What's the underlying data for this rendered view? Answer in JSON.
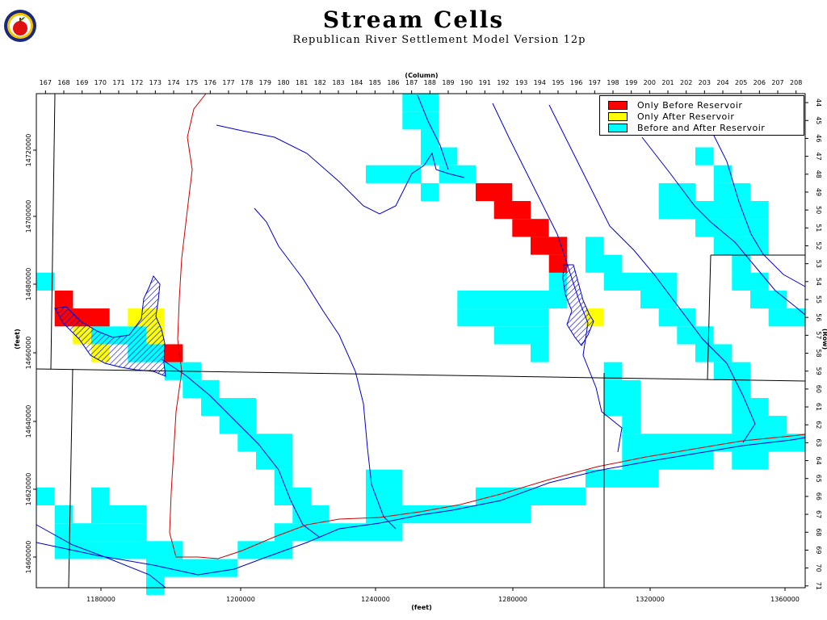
{
  "title": "Stream Cells",
  "subtitle": "Republican River Settlement Model Version 12p",
  "logo": {
    "icon": "apple-seal-logo"
  },
  "axes": {
    "top_label": "(Column)",
    "bottom_label": "(feet)",
    "left_label": "(feet)",
    "right_label": "(Row)",
    "columns": [
      "167",
      "168",
      "169",
      "170",
      "171",
      "172",
      "173",
      "174",
      "175",
      "176",
      "177",
      "178",
      "179",
      "180",
      "181",
      "182",
      "183",
      "184",
      "185",
      "186",
      "187",
      "188",
      "189",
      "190",
      "191",
      "192",
      "193",
      "194",
      "195",
      "196",
      "197",
      "198",
      "199",
      "200",
      "201",
      "202",
      "203",
      "204",
      "205",
      "206",
      "207",
      "208"
    ],
    "rows": [
      "44",
      "45",
      "46",
      "47",
      "48",
      "49",
      "50",
      "51",
      "52",
      "53",
      "54",
      "55",
      "56",
      "57",
      "58",
      "59",
      "60",
      "61",
      "62",
      "63",
      "64",
      "65",
      "66",
      "67",
      "68",
      "69",
      "70",
      "71"
    ],
    "x_ticks": [
      "1180000",
      "1200000",
      "1240000",
      "1280000",
      "1320000",
      "1360000"
    ],
    "y_ticks": [
      "14720000",
      "14700000",
      "14680000",
      "14660000",
      "14640000",
      "14620000",
      "14600000"
    ]
  },
  "legend": [
    {
      "label": "Only Before Reservoir",
      "color": "#ff0000"
    },
    {
      "label": "Only After Reservoir",
      "color": "#ffff00"
    },
    {
      "label": "Before and After Reservoir",
      "color": "#00ffff"
    }
  ],
  "colors": {
    "only_before": "#ff0000",
    "only_after": "#ffff00",
    "both": "#00ffff",
    "stream": "#0000cc",
    "boundary": "#000000",
    "canal": "#cc0000"
  }
}
